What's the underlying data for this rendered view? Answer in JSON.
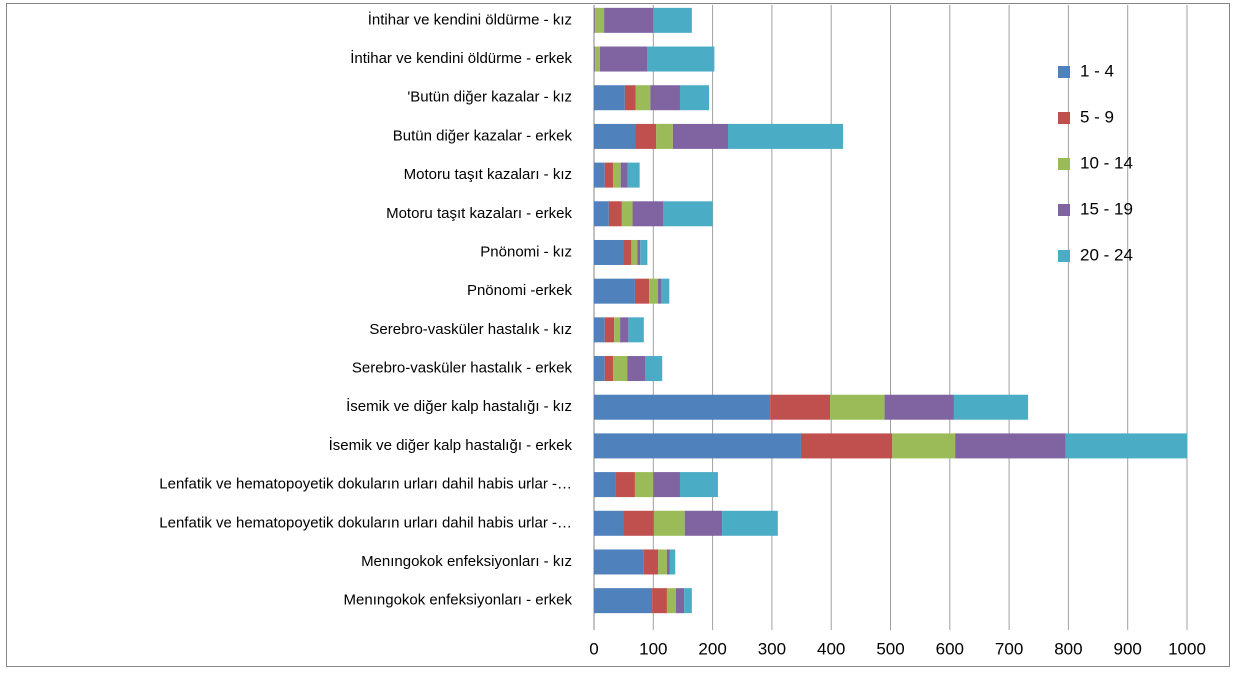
{
  "chart_data": {
    "type": "stacked-bar-horizontal",
    "categories": [
      "İntihar ve kendini öldürme - kız",
      "İntihar ve kendini öldürme - erkek",
      "'Butün diğer kazalar - kız",
      "Butün diğer kazalar - erkek",
      "Motoru taşıt kazaları - kız",
      "Motoru taşıt kazaları - erkek",
      "Pnönomi - kız",
      "Pnönomi -erkek",
      "Serebro-vasküler hastalık - kız",
      "Serebro-vasküler hastalık - erkek",
      "İsemik ve diğer kalp hastalığı - kız",
      "İsemik ve diğer kalp hastalığı - erkek",
      "Lenfatik ve hematopoyetik dokuların urları dahil habis urlar -…",
      "Lenfatik ve hematopoyetik dokuların urları dahil habis urlar -…",
      "Menıngokok enfeksiyonları - kız",
      "Menıngokok enfeksiyonları - erkek"
    ],
    "series": [
      {
        "name": "1 - 4",
        "color": "#4f81bd",
        "values": [
          1,
          1,
          52,
          70,
          18,
          25,
          49,
          69,
          18,
          18,
          297,
          349,
          37,
          49,
          83,
          98
        ]
      },
      {
        "name": "5 - 9",
        "color": "#c0504d",
        "values": [
          1,
          1,
          18,
          35,
          14,
          22,
          14,
          24,
          16,
          14,
          101,
          154,
          32,
          52,
          25,
          25
        ]
      },
      {
        "name": "10 - 14",
        "color": "#9bbb59",
        "values": [
          15,
          8,
          25,
          28,
          13,
          18,
          10,
          15,
          10,
          24,
          92,
          106,
          31,
          52,
          15,
          15
        ]
      },
      {
        "name": "15 - 19",
        "color": "#8064a2",
        "values": [
          83,
          80,
          50,
          93,
          12,
          52,
          5,
          5,
          14,
          30,
          117,
          186,
          45,
          63,
          5,
          14
        ]
      },
      {
        "name": "20 - 24",
        "color": "#4bacc6",
        "values": [
          65,
          113,
          49,
          194,
          20,
          83,
          12,
          14,
          26,
          29,
          125,
          205,
          64,
          94,
          9,
          13
        ]
      }
    ],
    "xlim": [
      0,
      1000
    ],
    "xticks": [
      0,
      100,
      200,
      300,
      400,
      500,
      600,
      700,
      800,
      900,
      1000
    ],
    "grid": true,
    "legend": "right"
  }
}
